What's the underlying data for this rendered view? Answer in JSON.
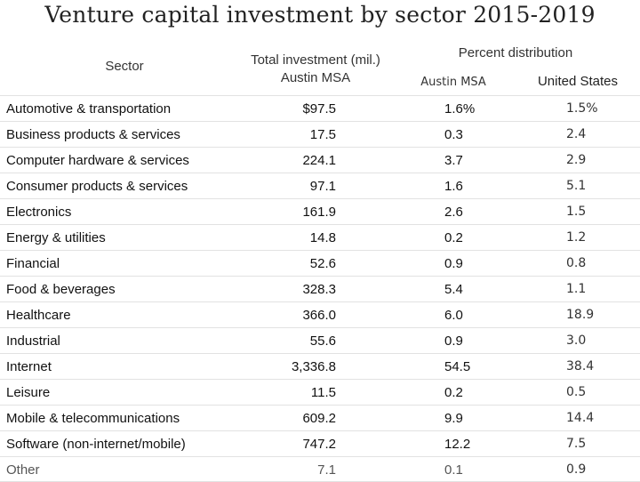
{
  "title": "Venture capital investment by sector 2015-2019",
  "headers": {
    "sector": "Sector",
    "total_line1": "Total investment (mil.)",
    "total_line2": "Austin MSA",
    "percent_distribution": "Percent distribution",
    "austin": "Austin MSA",
    "us": "United States"
  },
  "chart_data": {
    "type": "table",
    "title": "Venture capital investment by sector 2015-2019",
    "columns": [
      "Sector",
      "Total investment (mil.) Austin MSA",
      "Percent distribution Austin MSA",
      "Percent distribution United States"
    ],
    "rows": [
      {
        "sector": "Automotive & transportation",
        "total": "$97.5",
        "austin": "1.6%",
        "us": "1.5%"
      },
      {
        "sector": "Business products & services",
        "total": "17.5",
        "austin": "0.3",
        "us": "2.4"
      },
      {
        "sector": "Computer hardware & services",
        "total": "224.1",
        "austin": "3.7",
        "us": "2.9"
      },
      {
        "sector": "Consumer products & services",
        "total": "97.1",
        "austin": "1.6",
        "us": "5.1"
      },
      {
        "sector": "Electronics",
        "total": "161.9",
        "austin": "2.6",
        "us": "1.5"
      },
      {
        "sector": "Energy & utilities",
        "total": "14.8",
        "austin": "0.2",
        "us": "1.2"
      },
      {
        "sector": "Financial",
        "total": "52.6",
        "austin": "0.9",
        "us": "0.8"
      },
      {
        "sector": "Food & beverages",
        "total": "328.3",
        "austin": "5.4",
        "us": "1.1"
      },
      {
        "sector": "Healthcare",
        "total": "366.0",
        "austin": "6.0",
        "us": "18.9"
      },
      {
        "sector": "Industrial",
        "total": "55.6",
        "austin": "0.9",
        "us": "3.0"
      },
      {
        "sector": "Internet",
        "total": "3,336.8",
        "austin": "54.5",
        "us": "38.4"
      },
      {
        "sector": "Leisure",
        "total": "11.5",
        "austin": "0.2",
        "us": "0.5"
      },
      {
        "sector": "Mobile & telecommunications",
        "total": "609.2",
        "austin": "9.9",
        "us": "14.4"
      },
      {
        "sector": "Software (non-internet/mobile)",
        "total": "747.2",
        "austin": "12.2",
        "us": "7.5"
      },
      {
        "sector": "Other",
        "total": "7.1",
        "austin": "0.1",
        "us": "0.9"
      }
    ]
  }
}
